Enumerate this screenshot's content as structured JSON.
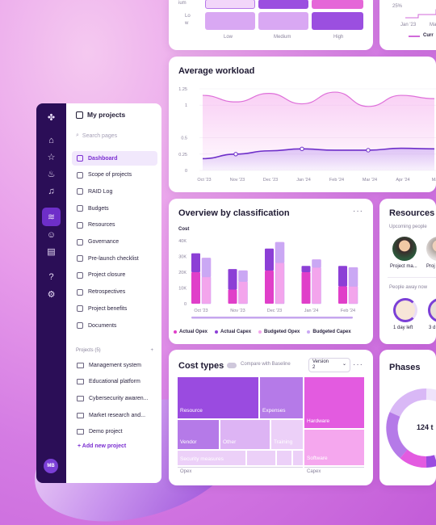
{
  "heatmap": {
    "row_labels": [
      "ium",
      "Lo",
      "w"
    ],
    "columns": [
      "Low",
      "Medium",
      "High"
    ],
    "colors": [
      "#e7c6f8",
      "#d9a8f3",
      "#c177eb",
      "#9b4fe0",
      "#e567d8"
    ]
  },
  "trend": {
    "tick": "25%",
    "x_labels": [
      "Jan '23",
      "Ma"
    ],
    "legend": "Curr"
  },
  "rail": {
    "icons": [
      "app-logo",
      "home-icon",
      "star-icon",
      "flame-icon",
      "bell-icon",
      "layers-icon",
      "users-icon",
      "gallery-icon",
      "help-icon",
      "settings-icon"
    ],
    "avatar": "MB"
  },
  "nav": {
    "title": "My projects",
    "search_placeholder": "Search pages",
    "items": [
      {
        "label": "Dashboard",
        "active": true
      },
      {
        "label": "Scope of projects"
      },
      {
        "label": "RAID Log"
      },
      {
        "label": "Budgets"
      },
      {
        "label": "Resources"
      },
      {
        "label": "Governance"
      },
      {
        "label": "Pre-launch checklist"
      },
      {
        "label": "Project closure"
      },
      {
        "label": "Retrospectives"
      },
      {
        "label": "Project benefits"
      },
      {
        "label": "Documents"
      }
    ],
    "section_label": "Projects (5)",
    "section_add": "+",
    "projects": [
      "Management system",
      "Educational platform",
      "Cybersecurity awaren...",
      "Market research and...",
      "Demo project"
    ],
    "add_project": "+ Add new project"
  },
  "workload": {
    "title": "Average workload",
    "chart_data": {
      "type": "line",
      "title": "Average workload",
      "x": [
        "Oct '23",
        "Nov '23",
        "Dec '23",
        "Jan '24",
        "Feb '24",
        "Mar '24",
        "Apr '24",
        "May"
      ],
      "ylim": [
        0,
        1.25
      ],
      "y_ticks": [
        "1.25",
        "1",
        "0.5",
        "0.25",
        "0"
      ],
      "series": [
        {
          "values": [
            1.15,
            1.05,
            1.18,
            1.02,
            1.2,
            0.98,
            1.15,
            1.1
          ]
        },
        {
          "values": [
            0.18,
            0.25,
            0.3,
            0.33,
            0.31,
            0.31,
            0.34,
            0.33
          ]
        }
      ]
    }
  },
  "overview": {
    "title": "Overview by classification",
    "menu": "···",
    "chart_data": {
      "type": "bar",
      "title": "Overview by classification",
      "ylabel": "Cost",
      "categories": [
        "Oct '23",
        "Nov '23",
        "Dec '23",
        "Jan '24",
        "Feb '24"
      ],
      "y_ticks": [
        "40K",
        "30K",
        "20K",
        "10K",
        "0"
      ],
      "ylim": [
        0,
        40000
      ],
      "series": [
        {
          "name": "Actual Opex",
          "values": [
            20000,
            9000,
            21000,
            20000,
            11000
          ]
        },
        {
          "name": "Actual Capex",
          "values": [
            12000,
            13000,
            14000,
            4000,
            13000
          ]
        },
        {
          "name": "Budgeted Opex",
          "values": [
            17000,
            14000,
            26000,
            23000,
            11000
          ]
        },
        {
          "name": "Budgeted Capex",
          "values": [
            12000,
            7000,
            13000,
            5000,
            12000
          ]
        }
      ],
      "colors": [
        "#e03fc9",
        "#8c3fd6",
        "#f3a5ec",
        "#caa8f4"
      ]
    }
  },
  "resources": {
    "title": "Resources",
    "upcoming": "Upcoming people",
    "people": [
      "Project ma...",
      "Proj"
    ],
    "away": "People away now",
    "days": [
      "1 day left",
      "3 d"
    ]
  },
  "cost": {
    "title": "Cost types",
    "compare": "Compare with Baseline",
    "version_label": "Version",
    "version_value": "2",
    "menu": "···",
    "blocks": [
      "Resource",
      "Expenses",
      "Vendor",
      "Other",
      "Training",
      "Security measures",
      "Hardware",
      "Software"
    ],
    "group_labels": [
      "Opex",
      "Capex"
    ]
  },
  "phases": {
    "title": "Phases",
    "center_value": "124 t"
  }
}
